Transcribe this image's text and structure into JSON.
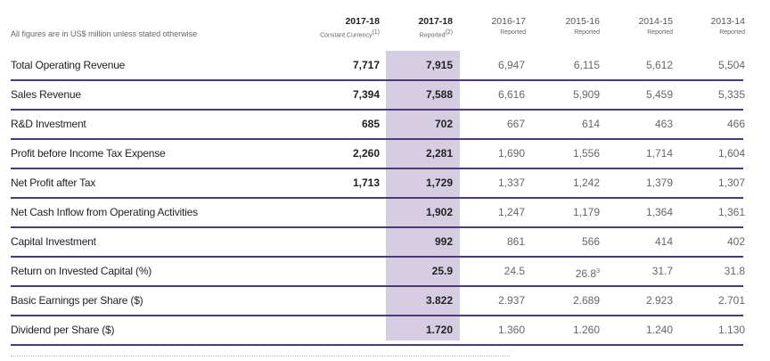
{
  "note": "All figures are in US$ million unless stated otherwise",
  "columns": [
    {
      "year": "2017-18",
      "sub": "Constant Currency",
      "sup": "(1)"
    },
    {
      "year": "2017-18",
      "sub": "Reported",
      "sup": "(2)"
    },
    {
      "year": "2016-17",
      "sub": "Reported",
      "sup": ""
    },
    {
      "year": "2015-16",
      "sub": "Reported",
      "sup": ""
    },
    {
      "year": "2014-15",
      "sub": "Reported",
      "sup": ""
    },
    {
      "year": "2013-14",
      "sub": "Reported",
      "sup": ""
    }
  ],
  "rows": [
    {
      "label": "Total Operating Revenue",
      "values": [
        "7,717",
        "7,915",
        "6,947",
        "6,115",
        "5,612",
        "5,504"
      ]
    },
    {
      "label": "Sales Revenue",
      "values": [
        "7,394",
        "7,588",
        "6,616",
        "5,909",
        "5,459",
        "5,335"
      ]
    },
    {
      "label": "R&D Investment",
      "values": [
        "685",
        "702",
        "667",
        "614",
        "463",
        "466"
      ]
    },
    {
      "label": "Profit before Income Tax Expense",
      "values": [
        "2,260",
        "2,281",
        "1,690",
        "1,556",
        "1,714",
        "1,604"
      ]
    },
    {
      "label": "Net Profit after Tax",
      "values": [
        "1,713",
        "1,729",
        "1,337",
        "1,242",
        "1,379",
        "1,307"
      ]
    },
    {
      "label": "Net Cash Inflow from Operating Activities",
      "values": [
        "",
        "1,902",
        "1,247",
        "1,179",
        "1,364",
        "1,361"
      ]
    },
    {
      "label": "Capital Investment",
      "values": [
        "",
        "992",
        "861",
        "566",
        "414",
        "402"
      ]
    },
    {
      "label": "Return on Invested Capital (%)",
      "values": [
        "",
        "25.9",
        "24.5",
        "26.8",
        "31.7",
        "31.8"
      ],
      "sup3": "3"
    },
    {
      "label": "Basic Earnings per Share ($)",
      "values": [
        "",
        "3.822",
        "2.937",
        "2.689",
        "2.923",
        "2.701"
      ]
    },
    {
      "label": "Dividend per Share ($)",
      "values": [
        "",
        "1.720",
        "1.360",
        "1.260",
        "1.240",
        "1.130"
      ]
    }
  ]
}
